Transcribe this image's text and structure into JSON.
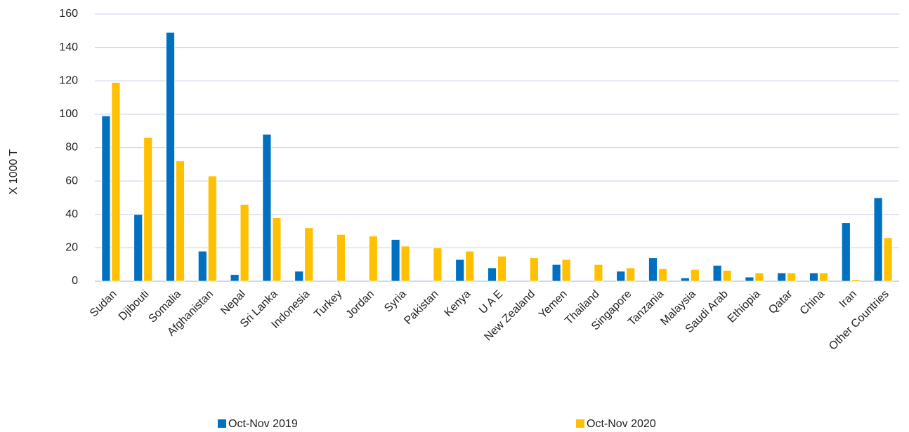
{
  "chart_data": {
    "type": "bar",
    "y_label": "X 1000 T",
    "categories": [
      "Sudan",
      "Djibouti",
      "Somalia",
      "Afghanistan",
      "Nepal",
      "Sri Lanka",
      "Indonesia",
      "Turkey",
      "Jordan",
      "Syria",
      "Pakistan",
      "Kenya",
      "U A E",
      "New Zealand",
      "Yemen",
      "Thailand",
      "Singapore",
      "Tanzania",
      "Malaysia",
      "Saudi Arab",
      "Ethiopia",
      "Qatar",
      "China",
      "Iran",
      "Other Countries"
    ],
    "series": [
      {
        "name": "Oct-Nov 2019",
        "color": "#0070c0",
        "values": [
          99,
          40,
          149,
          18,
          4,
          88,
          6,
          0,
          0,
          25,
          0,
          13,
          8,
          0,
          10,
          0,
          6,
          14,
          2,
          9.5,
          2.5,
          5,
          5,
          35,
          50
        ]
      },
      {
        "name": "Oct-Nov 2020",
        "color": "#ffc000",
        "values": [
          119,
          86,
          72,
          63,
          46,
          38,
          32,
          28,
          27,
          21,
          20,
          18,
          15,
          14,
          13,
          10,
          8,
          7.5,
          7,
          6.5,
          5,
          5,
          5,
          1,
          26
        ]
      }
    ],
    "ylim": [
      0,
      160
    ],
    "yticks": [
      0,
      20,
      40,
      60,
      80,
      100,
      120,
      140,
      160
    ],
    "grid": true,
    "legend": "bottom"
  }
}
